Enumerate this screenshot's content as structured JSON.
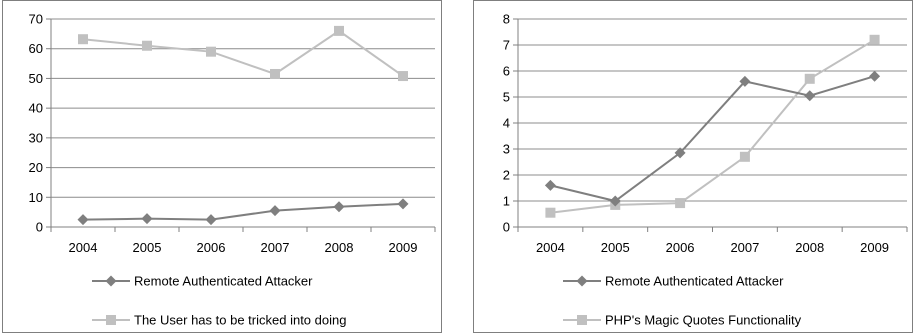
{
  "chart_data": [
    {
      "type": "line",
      "x": [
        "2004",
        "2005",
        "2006",
        "2007",
        "2008",
        "2009"
      ],
      "ylim": [
        0,
        70
      ],
      "yticks": [
        0,
        10,
        20,
        30,
        40,
        50,
        60,
        70
      ],
      "grid": true,
      "legend_position": "bottom",
      "series": [
        {
          "name": "Remote Authenticated Attacker",
          "marker": "diamond",
          "color": "#7f7f7f",
          "values": [
            2.5,
            2.8,
            2.5,
            5.5,
            6.8,
            7.8
          ]
        },
        {
          "name": "The User has to be tricked into doing",
          "marker": "square",
          "color": "#c0c0c0",
          "values": [
            63.2,
            61,
            59,
            51.5,
            66,
            50.8
          ]
        }
      ]
    },
    {
      "type": "line",
      "x": [
        "2004",
        "2005",
        "2006",
        "2007",
        "2008",
        "2009"
      ],
      "ylim": [
        0,
        8
      ],
      "yticks": [
        0,
        1,
        2,
        3,
        4,
        5,
        6,
        7,
        8
      ],
      "grid": true,
      "legend_position": "bottom",
      "series": [
        {
          "name": "Remote Authenticated Attacker",
          "marker": "diamond",
          "color": "#7f7f7f",
          "values": [
            1.6,
            1.0,
            2.85,
            5.6,
            5.05,
            5.8
          ]
        },
        {
          "name": "PHP's Magic Quotes Functionality",
          "marker": "square",
          "color": "#c0c0c0",
          "values": [
            0.55,
            0.85,
            0.92,
            2.7,
            5.7,
            7.2
          ]
        }
      ]
    }
  ]
}
